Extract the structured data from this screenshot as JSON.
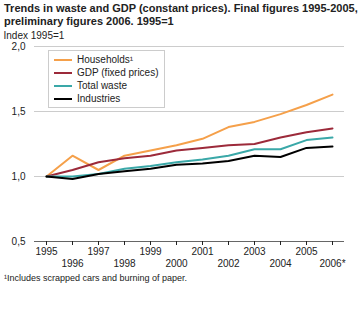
{
  "chart_data": {
    "type": "line",
    "title": "Trends in waste and GDP (constant prices). Final figures 1995-2005, preliminary figures 2006. 1995=1",
    "y_label": "Index 1995=1",
    "caption": "¹Includes scrapped cars and burning of paper.",
    "categories": [
      "1995",
      "1996",
      "1997",
      "1998",
      "1999",
      "2000",
      "2001",
      "2002",
      "2003",
      "2004",
      "2005",
      "2006*"
    ],
    "series": [
      {
        "name": "Households¹",
        "color": "#f5a04a",
        "values": [
          1.0,
          1.16,
          1.05,
          1.16,
          1.2,
          1.24,
          1.29,
          1.38,
          1.42,
          1.48,
          1.55,
          1.63
        ]
      },
      {
        "name": "GDP (fixed prices)",
        "color": "#9c2a3a",
        "values": [
          1.0,
          1.05,
          1.11,
          1.14,
          1.16,
          1.2,
          1.22,
          1.24,
          1.25,
          1.3,
          1.34,
          1.37
        ]
      },
      {
        "name": "Total waste",
        "color": "#3aa8a8",
        "values": [
          1.0,
          1.0,
          1.02,
          1.06,
          1.08,
          1.11,
          1.13,
          1.16,
          1.21,
          1.21,
          1.28,
          1.3
        ]
      },
      {
        "name": "Industries",
        "color": "#000000",
        "values": [
          1.0,
          0.98,
          1.02,
          1.04,
          1.06,
          1.09,
          1.1,
          1.12,
          1.16,
          1.15,
          1.22,
          1.23
        ]
      }
    ],
    "ylim": [
      0.5,
      2.0
    ],
    "yticks": [
      {
        "value": 0.5,
        "label": "0,5"
      },
      {
        "value": 1.0,
        "label": "1,0"
      },
      {
        "value": 1.5,
        "label": "1,5"
      },
      {
        "value": 2.0,
        "label": "2,0"
      }
    ],
    "grid": true,
    "legend": "top-left"
  }
}
